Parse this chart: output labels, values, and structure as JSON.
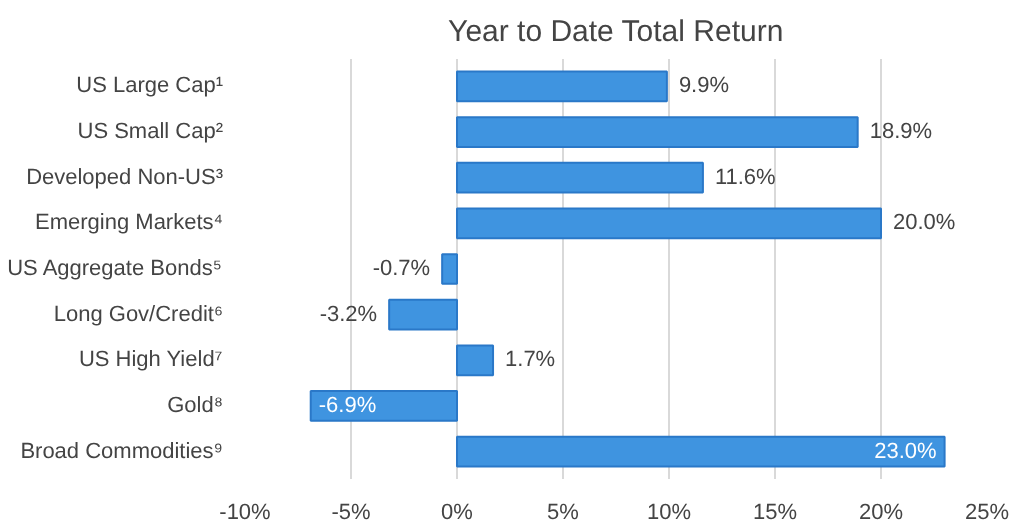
{
  "chart_data": {
    "type": "bar",
    "orientation": "horizontal",
    "title": "Year to Date Total Return",
    "categories": [
      "US Large Cap¹",
      "US Small Cap²",
      "Developed Non-US³",
      "Emerging Markets⁴",
      "US Aggregate Bonds⁵",
      "Long Gov/Credit⁶",
      "US High Yield⁷",
      "Gold⁸",
      "Broad Commodities⁹"
    ],
    "values": [
      9.9,
      18.9,
      11.6,
      20.0,
      -0.7,
      -3.2,
      1.7,
      -6.9,
      23.0
    ],
    "value_labels": [
      "9.9%",
      "18.9%",
      "11.6%",
      "20.0%",
      "-0.7%",
      "-3.2%",
      "1.7%",
      "-6.9%",
      "23.0%"
    ],
    "color": "#3f94e0",
    "xlim": [
      -10,
      25
    ],
    "xticks": [
      {
        "value": -10,
        "label": "-10%"
      },
      {
        "value": -5,
        "label": "-5%"
      },
      {
        "value": 0,
        "label": "0%"
      },
      {
        "value": 5,
        "label": "5%"
      },
      {
        "value": 10,
        "label": "10%"
      },
      {
        "value": 15,
        "label": "15%"
      },
      {
        "value": 20,
        "label": "20%"
      },
      {
        "value": 25,
        "label": "25%"
      }
    ],
    "grid": "x"
  }
}
